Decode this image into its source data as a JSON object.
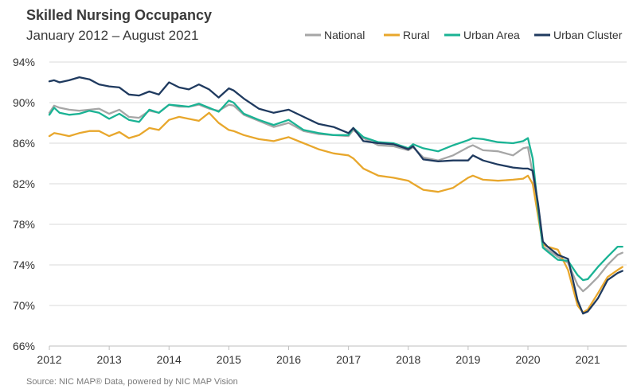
{
  "chart_data": {
    "type": "line",
    "title": "Skilled Nursing Occupancy",
    "subtitle": "January 2012 – August 2021",
    "source": "Source: NIC MAP® Data, powered by NIC MAP Vision",
    "xlim": [
      2012,
      2021.65
    ],
    "ylim": [
      66,
      94
    ],
    "y_ticks": [
      66,
      70,
      74,
      78,
      82,
      86,
      90,
      94
    ],
    "y_tick_labels": [
      "66%",
      "70%",
      "74%",
      "78%",
      "82%",
      "86%",
      "90%",
      "94%"
    ],
    "x_ticks": [
      2012,
      2013,
      2014,
      2015,
      2016,
      2017,
      2018,
      2019,
      2020,
      2021
    ],
    "x_tick_labels": [
      "2012",
      "2013",
      "2014",
      "2015",
      "2016",
      "2017",
      "2018",
      "2019",
      "2020",
      "2021"
    ],
    "grid": true,
    "legend_position": "top-right",
    "series": [
      {
        "name": "National",
        "color": "#a6a6a6",
        "x": [
          2012,
          2012.08,
          2012.17,
          2012.33,
          2012.5,
          2012.67,
          2012.83,
          2013,
          2013.17,
          2013.33,
          2013.5,
          2013.67,
          2013.83,
          2014,
          2014.17,
          2014.33,
          2014.5,
          2014.67,
          2014.83,
          2015,
          2015.08,
          2015.25,
          2015.5,
          2015.75,
          2016,
          2016.25,
          2016.5,
          2016.75,
          2017,
          2017.08,
          2017.25,
          2017.5,
          2017.75,
          2018,
          2018.08,
          2018.25,
          2018.5,
          2018.75,
          2019,
          2019.08,
          2019.25,
          2019.5,
          2019.75,
          2019.92,
          2020,
          2020.08,
          2020.17,
          2020.25,
          2020.33,
          2020.5,
          2020.67,
          2020.83,
          2020.92,
          2021,
          2021.17,
          2021.33,
          2021.5,
          2021.58
        ],
        "values": [
          89.0,
          89.7,
          89.5,
          89.3,
          89.2,
          89.3,
          89.4,
          88.9,
          89.3,
          88.6,
          88.5,
          89.2,
          89.0,
          89.8,
          89.6,
          89.6,
          89.8,
          89.4,
          89.2,
          89.8,
          89.7,
          88.8,
          88.2,
          87.6,
          88.0,
          87.2,
          86.9,
          86.8,
          86.7,
          87.3,
          86.5,
          85.8,
          85.7,
          85.3,
          85.6,
          84.6,
          84.3,
          84.8,
          85.6,
          85.8,
          85.3,
          85.2,
          84.8,
          85.5,
          85.6,
          83.0,
          79.5,
          75.8,
          75.5,
          74.8,
          74.2,
          72.0,
          71.4,
          71.8,
          72.8,
          74.0,
          75.0,
          75.2
        ]
      },
      {
        "name": "Rural",
        "color": "#e8a72c",
        "x": [
          2012,
          2012.08,
          2012.17,
          2012.33,
          2012.5,
          2012.67,
          2012.83,
          2013,
          2013.17,
          2013.33,
          2013.5,
          2013.67,
          2013.83,
          2014,
          2014.17,
          2014.33,
          2014.5,
          2014.67,
          2014.83,
          2015,
          2015.08,
          2015.25,
          2015.5,
          2015.75,
          2016,
          2016.25,
          2016.5,
          2016.75,
          2017,
          2017.08,
          2017.25,
          2017.5,
          2017.75,
          2018,
          2018.08,
          2018.25,
          2018.5,
          2018.75,
          2019,
          2019.08,
          2019.25,
          2019.5,
          2019.75,
          2019.92,
          2020,
          2020.08,
          2020.17,
          2020.25,
          2020.33,
          2020.5,
          2020.67,
          2020.83,
          2020.92,
          2021,
          2021.17,
          2021.33,
          2021.5,
          2021.58
        ],
        "values": [
          86.7,
          87.0,
          86.9,
          86.7,
          87.0,
          87.2,
          87.2,
          86.7,
          87.1,
          86.5,
          86.8,
          87.5,
          87.3,
          88.3,
          88.6,
          88.4,
          88.2,
          89.0,
          88.0,
          87.3,
          87.2,
          86.8,
          86.4,
          86.2,
          86.6,
          86.0,
          85.4,
          85.0,
          84.8,
          84.5,
          83.5,
          82.8,
          82.6,
          82.3,
          82.0,
          81.4,
          81.2,
          81.6,
          82.6,
          82.8,
          82.4,
          82.3,
          82.4,
          82.5,
          82.8,
          82.0,
          78.8,
          76.0,
          75.8,
          75.5,
          73.5,
          70.0,
          69.3,
          69.6,
          71.2,
          72.8,
          73.5,
          73.8
        ]
      },
      {
        "name": "Urban Area",
        "color": "#1ab394",
        "x": [
          2012,
          2012.08,
          2012.17,
          2012.33,
          2012.5,
          2012.67,
          2012.83,
          2013,
          2013.17,
          2013.33,
          2013.5,
          2013.67,
          2013.83,
          2014,
          2014.17,
          2014.33,
          2014.5,
          2014.67,
          2014.83,
          2015,
          2015.08,
          2015.25,
          2015.5,
          2015.75,
          2016,
          2016.25,
          2016.5,
          2016.75,
          2017,
          2017.08,
          2017.25,
          2017.5,
          2017.75,
          2018,
          2018.08,
          2018.25,
          2018.5,
          2018.75,
          2019,
          2019.08,
          2019.25,
          2019.5,
          2019.75,
          2019.92,
          2020,
          2020.08,
          2020.17,
          2020.25,
          2020.33,
          2020.5,
          2020.67,
          2020.83,
          2020.92,
          2021,
          2021.17,
          2021.33,
          2021.5,
          2021.58
        ],
        "values": [
          88.8,
          89.5,
          89.0,
          88.8,
          88.9,
          89.2,
          89.0,
          88.4,
          88.9,
          88.3,
          88.1,
          89.3,
          89.0,
          89.8,
          89.7,
          89.6,
          89.9,
          89.5,
          89.1,
          90.2,
          90.0,
          88.9,
          88.3,
          87.8,
          88.3,
          87.3,
          87.0,
          86.8,
          86.8,
          87.5,
          86.6,
          86.1,
          86.0,
          85.5,
          85.9,
          85.5,
          85.2,
          85.8,
          86.3,
          86.5,
          86.4,
          86.1,
          86.0,
          86.2,
          86.5,
          84.5,
          79.5,
          75.7,
          75.3,
          74.5,
          74.4,
          73.0,
          72.5,
          72.6,
          73.8,
          74.8,
          75.8,
          75.8
        ]
      },
      {
        "name": "Urban Cluster",
        "color": "#1f3a5f",
        "x": [
          2012,
          2012.08,
          2012.17,
          2012.33,
          2012.5,
          2012.67,
          2012.83,
          2013,
          2013.17,
          2013.33,
          2013.5,
          2013.67,
          2013.83,
          2014,
          2014.17,
          2014.33,
          2014.5,
          2014.67,
          2014.83,
          2015,
          2015.08,
          2015.25,
          2015.5,
          2015.75,
          2016,
          2016.25,
          2016.5,
          2016.75,
          2017,
          2017.08,
          2017.25,
          2017.5,
          2017.75,
          2018,
          2018.08,
          2018.25,
          2018.5,
          2018.75,
          2019,
          2019.08,
          2019.25,
          2019.5,
          2019.75,
          2019.92,
          2020,
          2020.08,
          2020.17,
          2020.25,
          2020.33,
          2020.5,
          2020.67,
          2020.83,
          2020.92,
          2021,
          2021.17,
          2021.33,
          2021.5,
          2021.58
        ],
        "values": [
          92.1,
          92.2,
          92.0,
          92.2,
          92.5,
          92.3,
          91.8,
          91.6,
          91.5,
          90.8,
          90.7,
          91.1,
          90.8,
          92.0,
          91.5,
          91.3,
          91.8,
          91.3,
          90.5,
          91.4,
          91.2,
          90.4,
          89.4,
          89.0,
          89.3,
          88.6,
          87.9,
          87.6,
          87.0,
          87.5,
          86.2,
          86.0,
          85.9,
          85.4,
          85.7,
          84.4,
          84.2,
          84.3,
          84.3,
          84.8,
          84.3,
          83.9,
          83.6,
          83.5,
          83.5,
          83.3,
          80.0,
          76.3,
          75.8,
          75.0,
          74.6,
          70.5,
          69.2,
          69.4,
          70.7,
          72.5,
          73.2,
          73.4
        ]
      }
    ]
  }
}
